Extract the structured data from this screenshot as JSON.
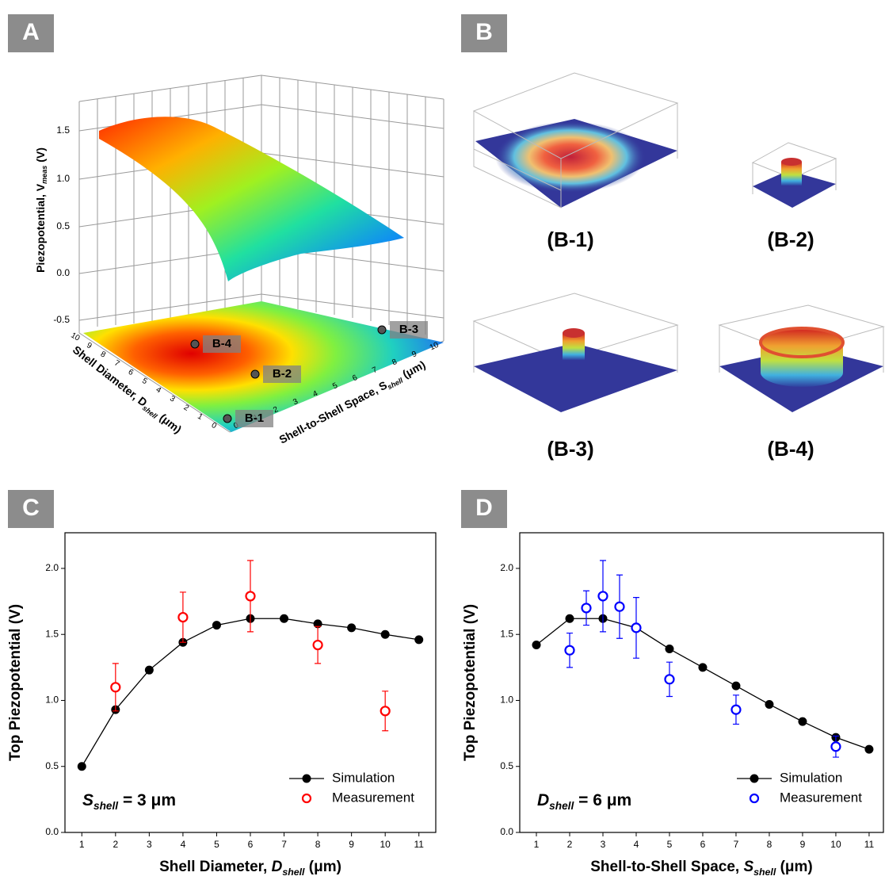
{
  "panel_labels": [
    "A",
    "B",
    "C",
    "D"
  ],
  "panel_a": {
    "z_label": [
      "Piezopotential, V",
      "meas",
      " (V)"
    ],
    "zticks": [
      "1.5",
      "1.0",
      "0.5",
      "0.0",
      "-0.5"
    ],
    "d_label": [
      "Shell Diameter, D",
      "shell",
      " (μm)"
    ],
    "d_ticks": [
      "10",
      "9",
      "8",
      "7",
      "6",
      "5",
      "4",
      "3",
      "2",
      "1",
      "0"
    ],
    "s_label": [
      "Shell-to-Shell Space, S",
      "shell",
      " (μm)"
    ],
    "s_ticks": [
      "0",
      "1",
      "2",
      "3",
      "4",
      "5",
      "6",
      "7",
      "8",
      "9",
      "10"
    ],
    "points": [
      "B-4",
      "B-2",
      "B-3",
      "B-1"
    ]
  },
  "panel_b": {
    "captions": [
      "(B-1)",
      "(B-2)",
      "(B-3)",
      "(B-4)"
    ]
  },
  "chart_data": [
    {
      "type": "line",
      "x_label": [
        "Shell Diameter, ",
        "D",
        "shell",
        " (μm)"
      ],
      "y_label": "Top Piezopotential (V)",
      "annotation": [
        "S",
        "shell",
        " = 3 μm"
      ],
      "xlim": [
        0.5,
        11.5
      ],
      "ylim": [
        0,
        2.27
      ],
      "xticks": [
        1,
        2,
        3,
        4,
        5,
        6,
        7,
        8,
        9,
        10,
        11
      ],
      "yticks": [
        {
          "value": 0,
          "label": "0.0"
        },
        0.5,
        {
          "value": 1,
          "label": "1.0"
        },
        1.5,
        {
          "value": 2,
          "label": "2.0"
        }
      ],
      "legend": "lower right",
      "series": [
        {
          "name": "Simulation",
          "color": "#000000",
          "marker": "filled",
          "x": [
            1,
            2,
            3,
            4,
            5,
            6,
            7,
            8,
            9,
            10,
            11
          ],
          "values": [
            0.5,
            0.93,
            1.23,
            1.44,
            1.57,
            1.62,
            1.62,
            1.58,
            1.55,
            1.5,
            1.46
          ]
        },
        {
          "name": "Measurement",
          "color": "#ff0000",
          "marker": "open",
          "x": [
            2,
            4,
            6,
            8,
            10
          ],
          "values": [
            1.1,
            1.63,
            1.79,
            1.42,
            0.92
          ],
          "errors": [
            0.18,
            0.19,
            0.27,
            0.14,
            0.15
          ]
        }
      ]
    },
    {
      "type": "line",
      "x_label": [
        "Shell-to-Shell Space, ",
        "S",
        "shell",
        " (μm)"
      ],
      "y_label": "Top Piezopotential (V)",
      "annotation": [
        "D",
        "shell",
        " = 6 μm"
      ],
      "xlim": [
        0.5,
        11.43
      ],
      "ylim": [
        0,
        2.27
      ],
      "xticks": [
        1,
        2,
        3,
        4,
        5,
        6,
        7,
        8,
        9,
        10,
        11
      ],
      "yticks": [
        {
          "value": 0,
          "label": "0.0"
        },
        0.5,
        {
          "value": 1,
          "label": "1.0"
        },
        1.5,
        {
          "value": 2,
          "label": "2.0"
        }
      ],
      "legend": "lower right",
      "series": [
        {
          "name": "Simulation",
          "color": "#000000",
          "marker": "filled",
          "x": [
            1,
            2,
            3,
            4,
            5,
            6,
            7,
            8,
            9,
            10,
            11
          ],
          "values": [
            1.42,
            1.62,
            1.62,
            1.55,
            1.39,
            1.25,
            1.11,
            0.97,
            0.84,
            0.72,
            0.63
          ]
        },
        {
          "name": "Measurement",
          "color": "#0000ff",
          "marker": "open",
          "x": [
            2,
            2.5,
            3,
            3.5,
            4,
            5,
            7,
            10
          ],
          "values": [
            1.38,
            1.7,
            1.79,
            1.71,
            1.55,
            1.16,
            0.93,
            0.65
          ],
          "errors": [
            0.13,
            0.13,
            0.27,
            0.24,
            0.23,
            0.13,
            0.11,
            0.08
          ]
        }
      ]
    }
  ]
}
